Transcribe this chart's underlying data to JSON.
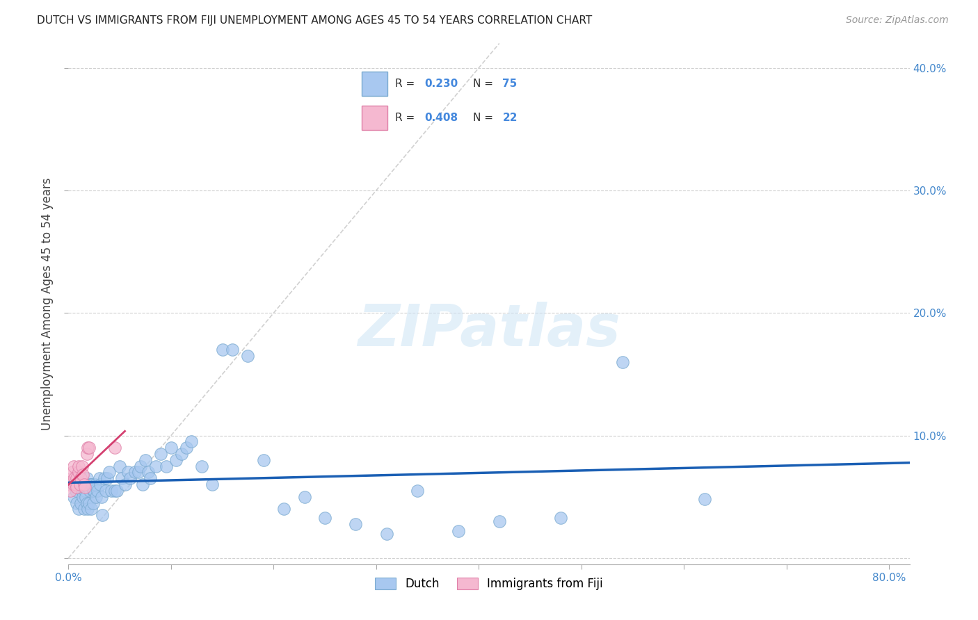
{
  "title": "DUTCH VS IMMIGRANTS FROM FIJI UNEMPLOYMENT AMONG AGES 45 TO 54 YEARS CORRELATION CHART",
  "source": "Source: ZipAtlas.com",
  "ylabel": "Unemployment Among Ages 45 to 54 years",
  "xlim": [
    0.0,
    0.82
  ],
  "ylim": [
    -0.005,
    0.42
  ],
  "xticks": [
    0.0,
    0.1,
    0.2,
    0.3,
    0.4,
    0.5,
    0.6,
    0.7,
    0.8
  ],
  "xticklabels": [
    "0.0%",
    "",
    "",
    "",
    "",
    "",
    "",
    "",
    "80.0%"
  ],
  "yticks": [
    0.0,
    0.1,
    0.2,
    0.3,
    0.4
  ],
  "yticklabels_right": [
    "",
    "10.0%",
    "20.0%",
    "30.0%",
    "40.0%"
  ],
  "dutch_color": "#a8c8f0",
  "dutch_edge_color": "#7aaad0",
  "fiji_color": "#f5b8d0",
  "fiji_edge_color": "#e080a8",
  "dutch_R": 0.23,
  "dutch_N": 75,
  "fiji_R": 0.408,
  "fiji_N": 22,
  "diagonal_color": "#cccccc",
  "dutch_line_color": "#1a5fb4",
  "fiji_line_color": "#d44070",
  "watermark": "ZIPatlas",
  "legend_R_color": "#4488dd",
  "legend_text_color": "#333333",
  "dutch_x": [
    0.005,
    0.007,
    0.008,
    0.01,
    0.01,
    0.012,
    0.013,
    0.014,
    0.015,
    0.015,
    0.016,
    0.017,
    0.018,
    0.018,
    0.019,
    0.02,
    0.02,
    0.021,
    0.022,
    0.022,
    0.023,
    0.024,
    0.024,
    0.025,
    0.026,
    0.027,
    0.028,
    0.03,
    0.031,
    0.032,
    0.033,
    0.035,
    0.036,
    0.038,
    0.04,
    0.042,
    0.045,
    0.047,
    0.05,
    0.052,
    0.055,
    0.058,
    0.06,
    0.065,
    0.068,
    0.07,
    0.072,
    0.075,
    0.078,
    0.08,
    0.085,
    0.09,
    0.095,
    0.1,
    0.105,
    0.11,
    0.115,
    0.12,
    0.13,
    0.14,
    0.15,
    0.16,
    0.175,
    0.19,
    0.21,
    0.23,
    0.25,
    0.28,
    0.31,
    0.34,
    0.38,
    0.42,
    0.48,
    0.54,
    0.62
  ],
  "dutch_y": [
    0.05,
    0.055,
    0.045,
    0.06,
    0.04,
    0.045,
    0.055,
    0.05,
    0.06,
    0.04,
    0.055,
    0.05,
    0.045,
    0.065,
    0.04,
    0.06,
    0.045,
    0.055,
    0.06,
    0.04,
    0.06,
    0.055,
    0.045,
    0.055,
    0.06,
    0.05,
    0.055,
    0.065,
    0.06,
    0.05,
    0.035,
    0.065,
    0.055,
    0.065,
    0.07,
    0.055,
    0.055,
    0.055,
    0.075,
    0.065,
    0.06,
    0.07,
    0.065,
    0.07,
    0.07,
    0.075,
    0.06,
    0.08,
    0.07,
    0.065,
    0.075,
    0.085,
    0.075,
    0.09,
    0.08,
    0.085,
    0.09,
    0.095,
    0.075,
    0.06,
    0.17,
    0.17,
    0.165,
    0.08,
    0.04,
    0.05,
    0.033,
    0.028,
    0.02,
    0.055,
    0.022,
    0.03,
    0.033,
    0.16,
    0.048
  ],
  "fiji_x": [
    0.001,
    0.002,
    0.003,
    0.004,
    0.005,
    0.005,
    0.006,
    0.007,
    0.008,
    0.008,
    0.01,
    0.01,
    0.011,
    0.012,
    0.013,
    0.014,
    0.015,
    0.016,
    0.018,
    0.019,
    0.02,
    0.045
  ],
  "fiji_y": [
    0.06,
    0.055,
    0.065,
    0.07,
    0.06,
    0.075,
    0.065,
    0.06,
    0.065,
    0.058,
    0.07,
    0.075,
    0.06,
    0.065,
    0.075,
    0.068,
    0.06,
    0.058,
    0.085,
    0.09,
    0.09,
    0.09
  ]
}
